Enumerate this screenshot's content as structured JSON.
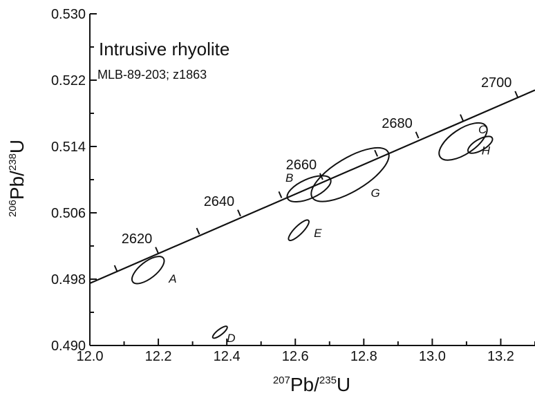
{
  "chart_data": {
    "type": "scatter",
    "title": "Intrusive rhyolite",
    "subtitle": "MLB-89-203; z1863",
    "xlabel": {
      "base": "Pb/",
      "sup1": "207",
      "sup2": "235",
      "tail": "U"
    },
    "ylabel": {
      "base": "Pb/",
      "sup1": "206",
      "sup2": "238",
      "tail": "U"
    },
    "xlim": [
      12.0,
      13.3
    ],
    "ylim": [
      0.49,
      0.53
    ],
    "x_ticks": [
      "12.0",
      "12.2",
      "12.4",
      "12.6",
      "12.8",
      "13.0",
      "13.2"
    ],
    "y_ticks": [
      "0.490",
      "0.498",
      "0.506",
      "0.514",
      "0.522",
      "0.530"
    ],
    "grid": false,
    "concordia": {
      "points": [
        {
          "x": 12.0,
          "y": 0.4975
        },
        {
          "x": 13.3,
          "y": 0.5208
        }
      ],
      "ages": [
        {
          "age": "2620",
          "x": 12.2,
          "y": 0.5011,
          "labeled": true
        },
        {
          "age": "2630",
          "x": 12.32,
          "y": 0.5034,
          "labeled": false
        },
        {
          "age": "2640",
          "x": 12.44,
          "y": 0.5056,
          "labeled": true
        },
        {
          "age": "2650",
          "x": 12.56,
          "y": 0.5078,
          "labeled": false
        },
        {
          "age": "2660",
          "x": 12.68,
          "y": 0.51,
          "labeled": true
        },
        {
          "age": "2670",
          "x": 12.84,
          "y": 0.5128,
          "labeled": false
        },
        {
          "age": "2680",
          "x": 12.96,
          "y": 0.515,
          "labeled": true
        },
        {
          "age": "2690",
          "x": 13.09,
          "y": 0.5171,
          "labeled": false
        },
        {
          "age": "2700",
          "x": 13.25,
          "y": 0.5199,
          "labeled": true
        },
        {
          "age": "2610",
          "x": 12.08,
          "y": 0.4989,
          "labeled": false
        }
      ]
    },
    "ellipses": [
      {
        "label": "A",
        "x": 12.17,
        "y": 0.4991
      },
      {
        "label": "B",
        "x": 12.64,
        "y": 0.5089
      },
      {
        "label": "C",
        "x": 13.09,
        "y": 0.5146
      },
      {
        "label": "D",
        "x": 12.38,
        "y": 0.4916
      },
      {
        "label": "E",
        "x": 12.61,
        "y": 0.5039
      },
      {
        "label": "G",
        "x": 12.76,
        "y": 0.5106
      },
      {
        "label": "H",
        "x": 13.14,
        "y": 0.5142
      }
    ]
  }
}
